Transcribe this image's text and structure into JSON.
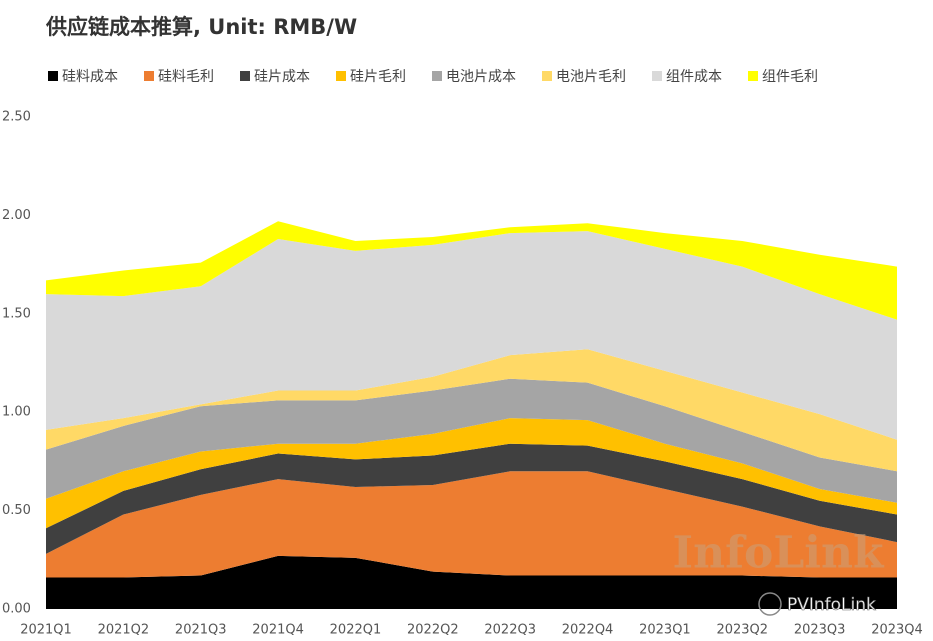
{
  "chart_data": {
    "type": "stacked_area",
    "title": "供应链成本推算, Unit: RMB/W",
    "categories": [
      "2021Q1",
      "2021Q2",
      "2021Q3",
      "2021Q4",
      "2022Q1",
      "2022Q2",
      "2022Q3",
      "2022Q4",
      "2023Q1",
      "2023Q2",
      "2023Q3",
      "2023Q4"
    ],
    "series": [
      {
        "name": "硅料成本",
        "color": "#000000",
        "values": [
          0.16,
          0.16,
          0.17,
          0.27,
          0.26,
          0.19,
          0.17,
          0.17,
          0.17,
          0.17,
          0.16,
          0.16
        ]
      },
      {
        "name": "硅料毛利",
        "color": "#ed7d31",
        "values": [
          0.12,
          0.32,
          0.41,
          0.39,
          0.36,
          0.44,
          0.53,
          0.53,
          0.44,
          0.35,
          0.26,
          0.18
        ]
      },
      {
        "name": "硅片成本",
        "color": "#404040",
        "values": [
          0.13,
          0.12,
          0.13,
          0.13,
          0.14,
          0.15,
          0.14,
          0.13,
          0.14,
          0.14,
          0.13,
          0.14
        ]
      },
      {
        "name": "硅片毛利",
        "color": "#ffc000",
        "values": [
          0.15,
          0.1,
          0.09,
          0.05,
          0.08,
          0.11,
          0.13,
          0.13,
          0.09,
          0.08,
          0.06,
          0.06
        ]
      },
      {
        "name": "电池片成本",
        "color": "#a5a5a5",
        "values": [
          0.25,
          0.23,
          0.23,
          0.22,
          0.22,
          0.22,
          0.2,
          0.19,
          0.19,
          0.16,
          0.16,
          0.16
        ]
      },
      {
        "name": "电池片毛利",
        "color": "#ffd966",
        "values": [
          0.1,
          0.04,
          0.01,
          0.05,
          0.05,
          0.07,
          0.12,
          0.17,
          0.18,
          0.2,
          0.22,
          0.16
        ]
      },
      {
        "name": "组件成本",
        "color": "#d9d9d9",
        "values": [
          0.69,
          0.62,
          0.6,
          0.77,
          0.71,
          0.67,
          0.62,
          0.6,
          0.62,
          0.64,
          0.61,
          0.61
        ]
      },
      {
        "name": "组件毛利",
        "color": "#ffff00",
        "values": [
          0.07,
          0.13,
          0.12,
          0.09,
          0.05,
          0.04,
          0.03,
          0.04,
          0.08,
          0.13,
          0.2,
          0.27
        ]
      }
    ],
    "ylim": [
      0,
      2.5
    ],
    "yticks": [
      {
        "value": 0,
        "label": "0.00"
      },
      {
        "value": 0.5,
        "label": "0.50"
      },
      {
        "value": 1,
        "label": "1.00"
      },
      {
        "value": 1.5,
        "label": "1.50"
      },
      {
        "value": 2,
        "label": "2.00"
      },
      {
        "value": 2.5,
        "label": "2.50"
      }
    ],
    "grid": false,
    "legend": "top",
    "watermark": "InfoLink",
    "source": "PVInfoLink"
  }
}
